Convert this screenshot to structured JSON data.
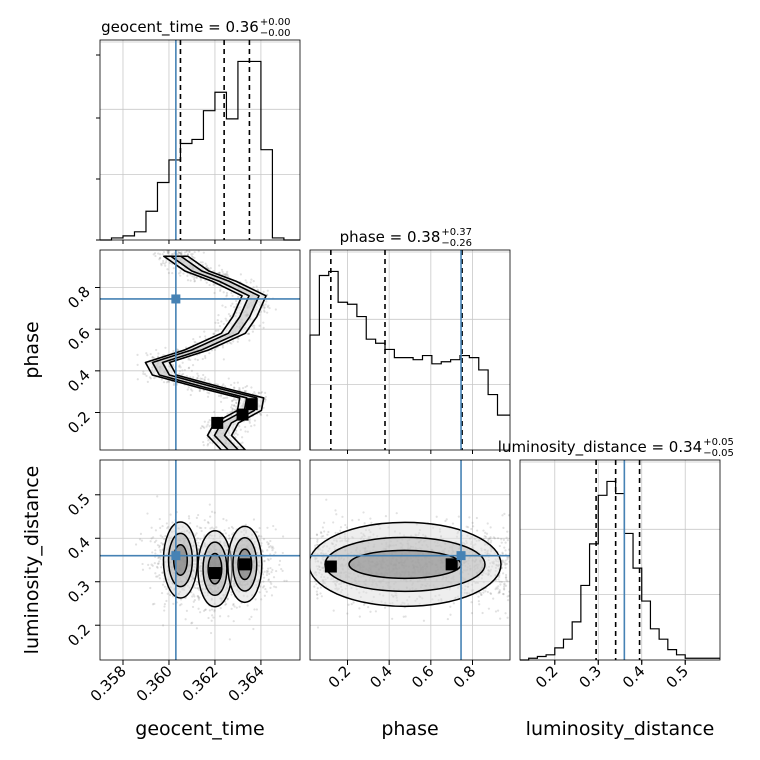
{
  "chart_data": {
    "type": "corner",
    "truth_color": "#4682b4",
    "parameters": [
      {
        "name": "geocent_time",
        "title": "geocent_time = 0.36",
        "title_sup": "+0.00",
        "title_sub": "−0.00",
        "range": [
          0.357,
          0.3657
        ],
        "ticks": [
          "0.358",
          "0.360",
          "0.362",
          "0.364"
        ],
        "tick_values": [
          0.358,
          0.36,
          0.362,
          0.364
        ],
        "quantiles": [
          0.3605,
          0.3624,
          0.3635
        ],
        "truth": 0.3603,
        "hist_bins": [
          0.357,
          0.3575,
          0.358,
          0.3585,
          0.359,
          0.3595,
          0.36,
          0.3605,
          0.361,
          0.3615,
          0.362,
          0.3625,
          0.363,
          0.3635,
          0.364,
          0.3645,
          0.365,
          0.3657
        ],
        "hist_counts": [
          0,
          1,
          2,
          4,
          14,
          28,
          39,
          47,
          49,
          63,
          72,
          59,
          87,
          87,
          44,
          1,
          0
        ]
      },
      {
        "name": "phase",
        "title": "phase = 0.38",
        "title_sup": "+0.37",
        "title_sub": "−0.26",
        "range": [
          0.02,
          0.98
        ],
        "ticks": [
          "0.2",
          "0.4",
          "0.6",
          "0.8"
        ],
        "tick_values": [
          0.2,
          0.4,
          0.6,
          0.8
        ],
        "quantiles": [
          0.12,
          0.38,
          0.75
        ],
        "truth": 0.745,
        "hist_bins": [
          0.02,
          0.065,
          0.11,
          0.155,
          0.2,
          0.245,
          0.29,
          0.335,
          0.38,
          0.425,
          0.47,
          0.515,
          0.56,
          0.605,
          0.65,
          0.695,
          0.74,
          0.785,
          0.83,
          0.875,
          0.92,
          0.98
        ],
        "hist_counts": [
          56,
          85,
          87,
          72,
          71,
          65,
          54,
          52,
          49,
          45,
          45,
          44,
          46,
          42,
          43,
          44,
          46,
          45,
          39,
          27,
          17
        ]
      },
      {
        "name": "luminosity_distance",
        "title": "luminosity_distance = 0.34",
        "title_sup": "+0.05",
        "title_sub": "−0.05",
        "range": [
          0.12,
          0.58
        ],
        "ticks": [
          "0.2",
          "0.3",
          "0.4",
          "0.5"
        ],
        "tick_values": [
          0.2,
          0.3,
          0.4,
          0.5
        ],
        "quantiles": [
          0.295,
          0.34,
          0.395
        ],
        "truth": 0.36,
        "hist_bins": [
          0.12,
          0.14,
          0.16,
          0.18,
          0.2,
          0.22,
          0.24,
          0.26,
          0.28,
          0.3,
          0.32,
          0.34,
          0.36,
          0.38,
          0.4,
          0.42,
          0.44,
          0.46,
          0.48,
          0.5,
          0.52,
          0.54,
          0.58
        ],
        "hist_counts": [
          0,
          1,
          2,
          3,
          7,
          12,
          22,
          43,
          67,
          95,
          103,
          96,
          73,
          53,
          34,
          18,
          12,
          6,
          3,
          1,
          1,
          1
        ]
      }
    ],
    "joint": [
      {
        "x": "geocent_time",
        "y": "phase",
        "truth": [
          0.3603,
          0.745
        ],
        "ridge": [
          [
            0.3628,
            0.02
          ],
          [
            0.3622,
            0.09
          ],
          [
            0.3625,
            0.15
          ],
          [
            0.3635,
            0.21
          ],
          [
            0.3636,
            0.27
          ],
          [
            0.3618,
            0.32
          ],
          [
            0.3598,
            0.38
          ],
          [
            0.3595,
            0.44
          ],
          [
            0.3612,
            0.5
          ],
          [
            0.3628,
            0.58
          ],
          [
            0.3633,
            0.66
          ],
          [
            0.3637,
            0.76
          ],
          [
            0.3624,
            0.83
          ],
          [
            0.3612,
            0.88
          ],
          [
            0.3603,
            0.95
          ]
        ],
        "peaks": [
          [
            0.3632,
            0.19
          ],
          [
            0.3636,
            0.24
          ],
          [
            0.3621,
            0.15
          ]
        ]
      },
      {
        "x": "geocent_time",
        "y": "luminosity_distance",
        "truth": [
          0.3603,
          0.36
        ],
        "blobs": [
          [
            0.3605,
            0.35
          ],
          [
            0.362,
            0.33
          ],
          [
            0.3633,
            0.34
          ]
        ],
        "peaks": [
          [
            0.362,
            0.32
          ],
          [
            0.3633,
            0.34
          ]
        ]
      },
      {
        "x": "phase",
        "y": "luminosity_distance",
        "truth": [
          0.745,
          0.36
        ],
        "peaks": [
          [
            0.12,
            0.335
          ],
          [
            0.7,
            0.34
          ]
        ]
      }
    ]
  }
}
